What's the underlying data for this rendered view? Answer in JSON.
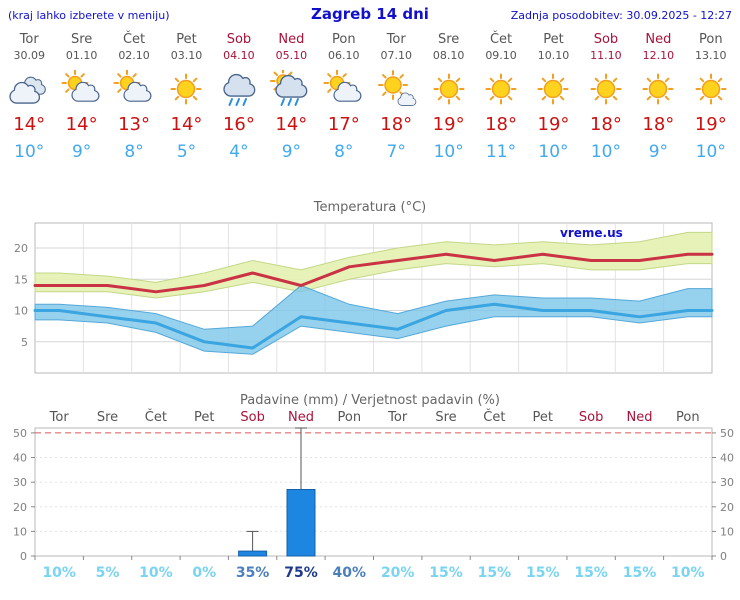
{
  "header": {
    "menu_note": "(kraj lahko izberete v meniju)",
    "title": "Zagreb 14 dni",
    "last_update": "Zadnja posodobitev: 30.09.2025 - 12:27"
  },
  "watermark": "vreme.us",
  "days": [
    {
      "name": "Tor",
      "date": "30.09",
      "weekend": false,
      "icon": "cloudy",
      "high": 14,
      "low": 10
    },
    {
      "name": "Sre",
      "date": "01.10",
      "weekend": false,
      "icon": "partly-cloudy",
      "high": 14,
      "low": 9
    },
    {
      "name": "Čet",
      "date": "02.10",
      "weekend": false,
      "icon": "partly-cloudy",
      "high": 13,
      "low": 8
    },
    {
      "name": "Pet",
      "date": "03.10",
      "weekend": false,
      "icon": "sunny",
      "high": 14,
      "low": 5
    },
    {
      "name": "Sob",
      "date": "04.10",
      "weekend": true,
      "icon": "rain",
      "high": 16,
      "low": 4
    },
    {
      "name": "Ned",
      "date": "05.10",
      "weekend": true,
      "icon": "rain-sun",
      "high": 14,
      "low": 9
    },
    {
      "name": "Pon",
      "date": "06.10",
      "weekend": false,
      "icon": "partly-cloudy",
      "high": 17,
      "low": 8
    },
    {
      "name": "Tor",
      "date": "07.10",
      "weekend": false,
      "icon": "mostly-sunny",
      "high": 18,
      "low": 7
    },
    {
      "name": "Sre",
      "date": "08.10",
      "weekend": false,
      "icon": "sunny",
      "high": 19,
      "low": 10
    },
    {
      "name": "Čet",
      "date": "09.10",
      "weekend": false,
      "icon": "sunny",
      "high": 18,
      "low": 11
    },
    {
      "name": "Pet",
      "date": "10.10",
      "weekend": false,
      "icon": "sunny",
      "high": 19,
      "low": 10
    },
    {
      "name": "Sob",
      "date": "11.10",
      "weekend": true,
      "icon": "sunny",
      "high": 18,
      "low": 10
    },
    {
      "name": "Ned",
      "date": "12.10",
      "weekend": true,
      "icon": "sunny",
      "high": 18,
      "low": 9
    },
    {
      "name": "Pon",
      "date": "13.10",
      "weekend": false,
      "icon": "sunny",
      "high": 19,
      "low": 10
    }
  ],
  "chart_data": [
    {
      "type": "line",
      "title": "Temperatura (°C)",
      "x_categories": [
        "Tor",
        "Sre",
        "Čet",
        "Pet",
        "Sob",
        "Ned",
        "Pon",
        "Tor",
        "Sre",
        "Čet",
        "Pet",
        "Sob",
        "Ned",
        "Pon"
      ],
      "ylim": [
        0,
        24
      ],
      "yticks": [
        5,
        10,
        15,
        20
      ],
      "grid": true,
      "legend_position": "none",
      "series": [
        {
          "name": "max-temp",
          "color": "#c93344",
          "values": [
            14,
            14,
            13,
            14,
            16,
            14,
            17,
            18,
            19,
            18,
            19,
            18,
            18,
            19
          ]
        },
        {
          "name": "min-temp",
          "color": "#3aa5e0",
          "values": [
            10,
            9,
            8,
            5,
            4,
            9,
            8,
            7,
            10,
            11,
            10,
            10,
            9,
            10
          ]
        }
      ],
      "bands": [
        {
          "name": "max-temp-range",
          "fill": "#e6f1b4",
          "stroke": "#c3d788",
          "opacity": 0.95,
          "upper": [
            16,
            15.5,
            14.5,
            16,
            18,
            16.5,
            18.5,
            20,
            21,
            20.5,
            21,
            20.5,
            21,
            22.5
          ],
          "lower": [
            13,
            13,
            12,
            13,
            14.5,
            13,
            15,
            16.5,
            17.5,
            17,
            17.5,
            16.5,
            16.5,
            17.5
          ]
        },
        {
          "name": "min-temp-range",
          "fill": "#7cc5ea",
          "stroke": "#55a8d8",
          "opacity": 0.8,
          "upper": [
            11,
            10.5,
            9.5,
            7,
            7.5,
            14,
            11,
            9.5,
            11.5,
            12.5,
            12,
            12,
            11.5,
            13.5
          ],
          "lower": [
            8.5,
            8,
            6.5,
            3.5,
            3,
            7.5,
            6.5,
            5.5,
            7.5,
            9,
            9,
            9,
            8,
            9
          ]
        }
      ]
    },
    {
      "type": "bar",
      "title": "Padavine (mm) / Verjetnost padavin (%)",
      "categories": [
        "Tor",
        "Sre",
        "Čet",
        "Pet",
        "Sob",
        "Ned",
        "Pon",
        "Tor",
        "Sre",
        "Čet",
        "Pet",
        "Sob",
        "Ned",
        "Pon"
      ],
      "values": [
        0,
        0,
        0,
        0,
        2,
        27,
        0,
        0,
        0,
        0,
        0,
        0,
        0,
        0
      ],
      "whiskers": [
        0,
        0,
        0,
        0,
        10,
        52,
        0,
        0,
        0,
        0,
        0,
        0,
        0,
        0
      ],
      "probabilities": [
        10,
        5,
        10,
        0,
        35,
        75,
        40,
        20,
        15,
        15,
        15,
        15,
        15,
        10
      ],
      "ylim": [
        0,
        52
      ],
      "yticks": [
        0,
        10,
        20,
        30,
        40,
        50
      ],
      "bar_color": "#1c86e0"
    }
  ],
  "colors": {
    "header_text": "#1111cc",
    "weekday_text": "#555555",
    "weekend_text": "#a8123a",
    "high_temp": "#cc1111",
    "low_temp": "#41a9ee",
    "prob_low": "#79d4f2",
    "prob_mid": "#4b7fbd",
    "prob_high": "#1e3a8e"
  }
}
